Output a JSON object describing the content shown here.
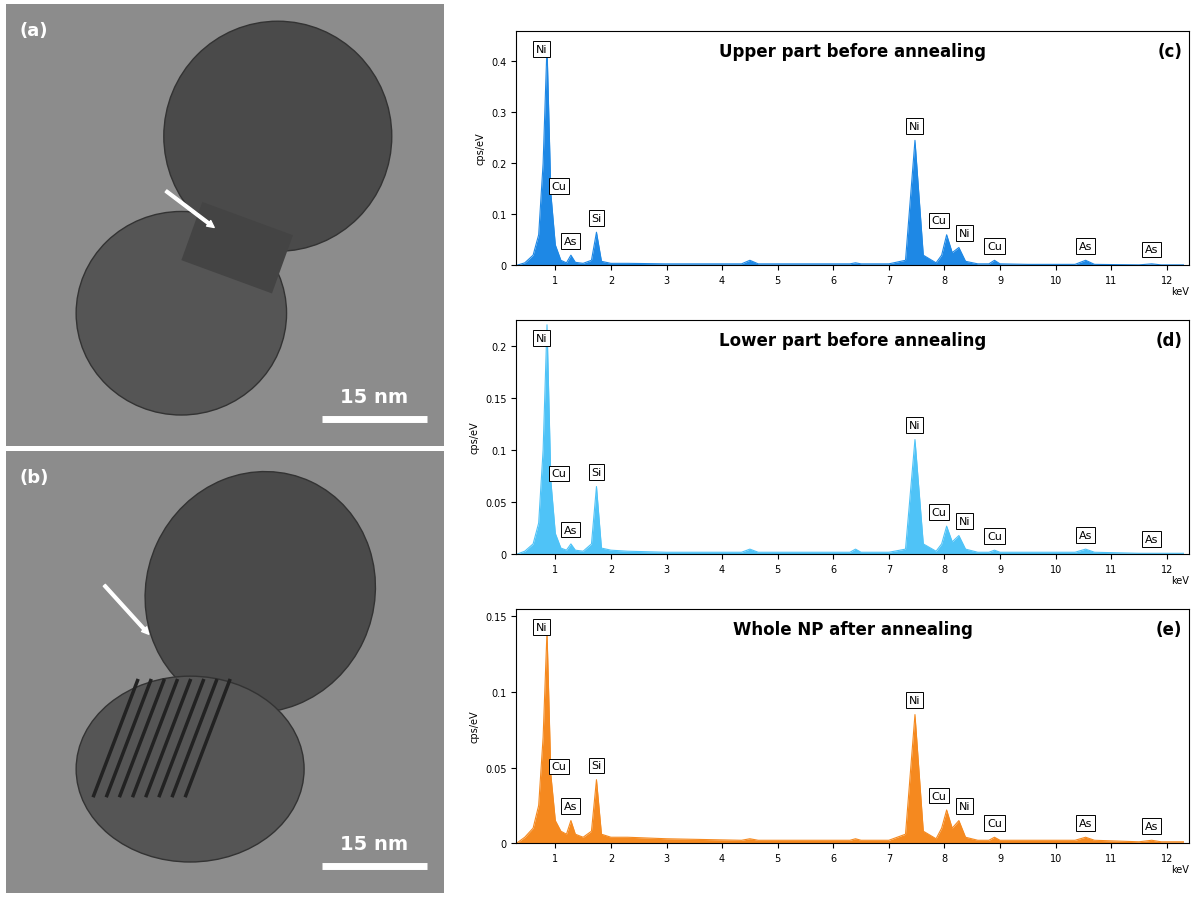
{
  "images": [
    {
      "label": "(a)",
      "scale_bar": "15 nm"
    },
    {
      "label": "(b)",
      "scale_bar": "15 nm"
    }
  ],
  "chart_data": [
    {
      "type": "area",
      "title": "Upper part before annealing",
      "label": "(c)",
      "xlabel": "keV",
      "ylabel": "cps/eV",
      "color": "#1e88e5",
      "xlim": [
        0.3,
        12.4
      ],
      "xticks": [
        1,
        2,
        3,
        4,
        5,
        6,
        7,
        8,
        9,
        10,
        11,
        12
      ],
      "ylim": [
        0,
        0.46
      ],
      "yticks": [
        0,
        0.1,
        0.2,
        0.3,
        0.4
      ],
      "x": [
        0.3,
        0.45,
        0.6,
        0.7,
        0.78,
        0.85,
        0.92,
        1.0,
        1.1,
        1.2,
        1.28,
        1.36,
        1.5,
        1.65,
        1.74,
        1.83,
        2.0,
        2.3,
        3.0,
        4.35,
        4.5,
        4.65,
        5.5,
        6.3,
        6.4,
        6.5,
        7.0,
        7.3,
        7.47,
        7.62,
        7.85,
        7.95,
        8.04,
        8.14,
        8.26,
        8.38,
        8.6,
        8.8,
        8.9,
        9.0,
        9.5,
        10.35,
        10.54,
        10.7,
        11.5,
        11.73,
        11.9,
        12.3
      ],
      "values": [
        0.0,
        0.005,
        0.02,
        0.06,
        0.2,
        0.43,
        0.14,
        0.04,
        0.01,
        0.005,
        0.02,
        0.006,
        0.004,
        0.01,
        0.065,
        0.008,
        0.004,
        0.004,
        0.003,
        0.003,
        0.01,
        0.003,
        0.003,
        0.003,
        0.005,
        0.003,
        0.003,
        0.01,
        0.245,
        0.02,
        0.005,
        0.02,
        0.06,
        0.025,
        0.035,
        0.008,
        0.003,
        0.003,
        0.01,
        0.003,
        0.002,
        0.002,
        0.01,
        0.002,
        0.001,
        0.003,
        0.001,
        0.001
      ],
      "peak_labels": [
        {
          "text": "Ni",
          "x": 0.85
        },
        {
          "text": "Cu",
          "x": 0.93
        },
        {
          "text": "As",
          "x": 1.28
        },
        {
          "text": "Si",
          "x": 1.74
        },
        {
          "text": "Ni",
          "x": 7.47
        },
        {
          "text": "Cu",
          "x": 8.04
        },
        {
          "text": "Ni",
          "x": 8.26
        },
        {
          "text": "Cu",
          "x": 8.9
        },
        {
          "text": "As",
          "x": 10.54
        },
        {
          "text": "As",
          "x": 11.73
        }
      ]
    },
    {
      "type": "area",
      "title": "Lower part before annealing",
      "label": "(d)",
      "xlabel": "keV",
      "ylabel": "cps/eV",
      "color": "#4fc3f7",
      "xlim": [
        0.3,
        12.4
      ],
      "xticks": [
        1,
        2,
        3,
        4,
        5,
        6,
        7,
        8,
        9,
        10,
        11,
        12
      ],
      "ylim": [
        0,
        0.225
      ],
      "yticks": [
        0,
        0.05,
        0.1,
        0.15,
        0.2
      ],
      "x": [
        0.3,
        0.45,
        0.6,
        0.7,
        0.78,
        0.85,
        0.92,
        1.0,
        1.1,
        1.2,
        1.28,
        1.36,
        1.5,
        1.65,
        1.74,
        1.83,
        2.0,
        2.3,
        3.0,
        4.35,
        4.5,
        4.65,
        5.5,
        6.3,
        6.4,
        6.5,
        7.0,
        7.3,
        7.47,
        7.62,
        7.85,
        7.95,
        8.04,
        8.14,
        8.26,
        8.38,
        8.6,
        8.8,
        8.9,
        9.0,
        9.5,
        10.35,
        10.54,
        10.7,
        11.5,
        11.73,
        11.9,
        12.3
      ],
      "values": [
        0.0,
        0.003,
        0.01,
        0.03,
        0.1,
        0.22,
        0.07,
        0.02,
        0.006,
        0.004,
        0.01,
        0.004,
        0.003,
        0.01,
        0.065,
        0.006,
        0.004,
        0.003,
        0.002,
        0.002,
        0.005,
        0.002,
        0.002,
        0.002,
        0.005,
        0.002,
        0.002,
        0.005,
        0.11,
        0.01,
        0.003,
        0.01,
        0.027,
        0.012,
        0.018,
        0.005,
        0.002,
        0.002,
        0.004,
        0.002,
        0.002,
        0.002,
        0.005,
        0.002,
        0.001,
        0.001,
        0.001,
        0.001
      ],
      "peak_labels": [
        {
          "text": "Ni",
          "x": 0.85
        },
        {
          "text": "Cu",
          "x": 0.93
        },
        {
          "text": "As",
          "x": 1.28
        },
        {
          "text": "Si",
          "x": 1.74
        },
        {
          "text": "Ni",
          "x": 7.47
        },
        {
          "text": "Cu",
          "x": 8.04
        },
        {
          "text": "Ni",
          "x": 8.26
        },
        {
          "text": "Cu",
          "x": 8.9
        },
        {
          "text": "As",
          "x": 10.54
        },
        {
          "text": "As",
          "x": 11.73
        }
      ]
    },
    {
      "type": "area",
      "title": "Whole NP after annealing",
      "label": "(e)",
      "xlabel": "keV",
      "ylabel": "cps/eV",
      "color": "#f5891f",
      "xlim": [
        0.3,
        12.4
      ],
      "xticks": [
        1,
        2,
        3,
        4,
        5,
        6,
        7,
        8,
        9,
        10,
        11,
        12
      ],
      "ylim": [
        0,
        0.155
      ],
      "yticks": [
        0,
        0.05,
        0.1,
        0.15
      ],
      "x": [
        0.3,
        0.45,
        0.6,
        0.7,
        0.78,
        0.85,
        0.92,
        1.0,
        1.1,
        1.2,
        1.28,
        1.36,
        1.5,
        1.65,
        1.74,
        1.83,
        2.0,
        2.3,
        3.0,
        4.35,
        4.5,
        4.65,
        5.5,
        6.3,
        6.4,
        6.5,
        7.0,
        7.3,
        7.47,
        7.62,
        7.85,
        7.95,
        8.04,
        8.14,
        8.26,
        8.38,
        8.6,
        8.8,
        8.9,
        9.0,
        9.5,
        10.35,
        10.54,
        10.7,
        11.5,
        11.73,
        11.9,
        12.3
      ],
      "values": [
        0.0,
        0.004,
        0.01,
        0.025,
        0.07,
        0.14,
        0.045,
        0.015,
        0.008,
        0.006,
        0.015,
        0.006,
        0.004,
        0.008,
        0.042,
        0.006,
        0.004,
        0.004,
        0.003,
        0.002,
        0.003,
        0.002,
        0.002,
        0.002,
        0.003,
        0.002,
        0.002,
        0.006,
        0.085,
        0.008,
        0.003,
        0.01,
        0.022,
        0.01,
        0.015,
        0.004,
        0.002,
        0.002,
        0.004,
        0.002,
        0.002,
        0.002,
        0.004,
        0.002,
        0.001,
        0.002,
        0.001,
        0.001
      ],
      "peak_labels": [
        {
          "text": "Ni",
          "x": 0.85
        },
        {
          "text": "Cu",
          "x": 0.93
        },
        {
          "text": "As",
          "x": 1.28
        },
        {
          "text": "Si",
          "x": 1.74
        },
        {
          "text": "Ni",
          "x": 7.47
        },
        {
          "text": "Cu",
          "x": 8.04
        },
        {
          "text": "Ni",
          "x": 8.26
        },
        {
          "text": "Cu",
          "x": 8.9
        },
        {
          "text": "As",
          "x": 10.54
        },
        {
          "text": "As",
          "x": 11.73
        }
      ]
    }
  ]
}
